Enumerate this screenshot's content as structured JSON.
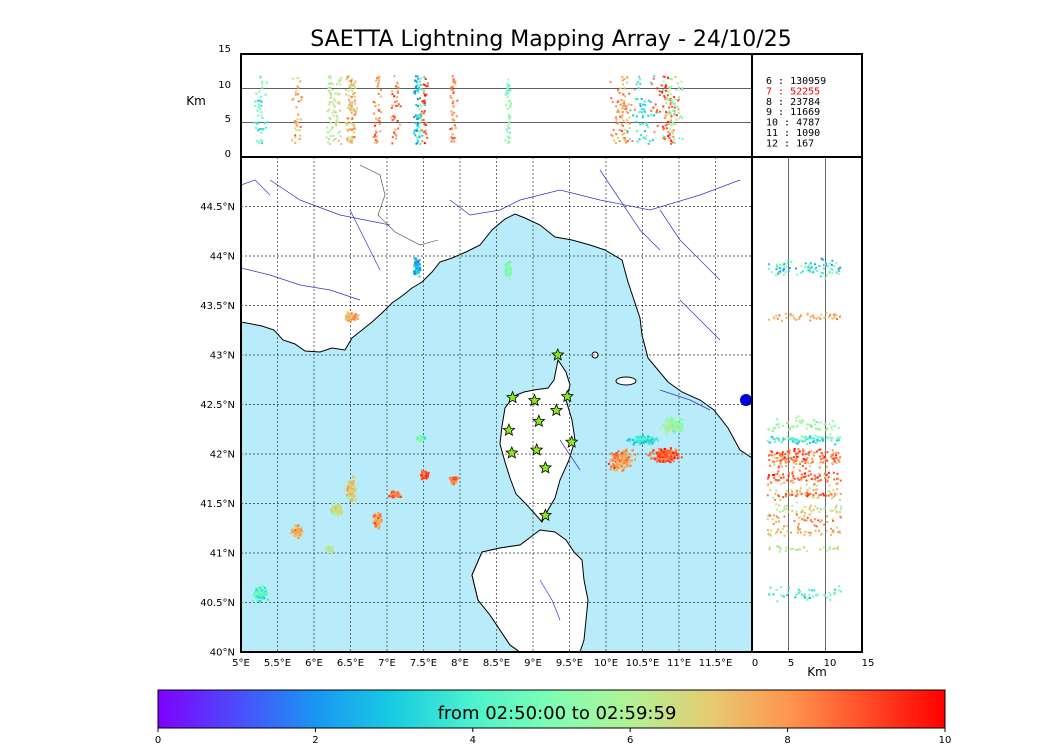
{
  "title": "SAETTA Lightning Mapping Array - 24/10/25",
  "altitude_panel": {
    "ylabel": "Km",
    "ticks": [
      "0",
      "5",
      "10",
      "15"
    ]
  },
  "side_panel": {
    "xlabel": "Km",
    "ticks": [
      "0",
      "5",
      "10",
      "15"
    ]
  },
  "map": {
    "lon_ticks": [
      "5°E",
      "5.5°E",
      "6°E",
      "6.5°E",
      "7°E",
      "7.5°E",
      "8°E",
      "8.5°E",
      "9°E",
      "9.5°E",
      "10°E",
      "10.5°E",
      "11°E",
      "11.5°E"
    ],
    "lat_ticks": [
      "40°N",
      "40.5°N",
      "41°N",
      "41.5°N",
      "42°N",
      "42.5°N",
      "43°N",
      "43.5°N",
      "44°N",
      "44.5°N"
    ],
    "lon_range": [
      5,
      12
    ],
    "lat_range": [
      40,
      45
    ],
    "sea_color": "#b8ecfb",
    "land_color": "#ffffff",
    "river_color": "#3333cc",
    "station_color": "#8bea1a"
  },
  "stations": [
    {
      "lon": 9.34,
      "lat": 43.0
    },
    {
      "lon": 8.72,
      "lat": 42.57
    },
    {
      "lon": 9.02,
      "lat": 42.54
    },
    {
      "lon": 9.47,
      "lat": 42.58
    },
    {
      "lon": 9.32,
      "lat": 42.44
    },
    {
      "lon": 9.08,
      "lat": 42.33
    },
    {
      "lon": 8.67,
      "lat": 42.24
    },
    {
      "lon": 9.53,
      "lat": 42.12
    },
    {
      "lon": 9.05,
      "lat": 42.04
    },
    {
      "lon": 8.71,
      "lat": 42.01
    },
    {
      "lon": 9.17,
      "lat": 41.86
    },
    {
      "lon": 9.17,
      "lat": 41.38
    }
  ],
  "legend": [
    {
      "label": " 6 :  130959",
      "color": "#000000"
    },
    {
      "label": " 7 :   52255",
      "color": "#ff0000"
    },
    {
      "label": " 8 :   23784",
      "color": "#000000"
    },
    {
      "label": " 9 :   11669",
      "color": "#000000"
    },
    {
      "label": "10 :    4787",
      "color": "#000000"
    },
    {
      "label": "11 :    1090",
      "color": "#000000"
    },
    {
      "label": "12 :     167",
      "color": "#000000"
    }
  ],
  "colorbar": {
    "label": "from 02:50:00 to 02:59:59",
    "ticks": [
      "0",
      "2",
      "4",
      "6",
      "8",
      "10"
    ],
    "range": [
      0,
      10
    ],
    "stops": [
      "#7f00ff",
      "#4c4cfc",
      "#1996f3",
      "#19cce2",
      "#4cf2ce",
      "#7ffeb3",
      "#b2f295",
      "#e5cc73",
      "#ff964f",
      "#ff4c27",
      "#ff0000"
    ]
  },
  "clusters": [
    {
      "lon": 5.25,
      "lat": 40.6,
      "rl": 0.12,
      "rt": 0.09,
      "c": 0.4
    },
    {
      "lon": 5.75,
      "lat": 41.22,
      "rl": 0.1,
      "rt": 0.08,
      "c": 0.75
    },
    {
      "lon": 6.2,
      "lat": 41.05,
      "rl": 0.06,
      "rt": 0.04,
      "c": 0.6
    },
    {
      "lon": 6.5,
      "lat": 41.65,
      "rl": 0.1,
      "rt": 0.15,
      "c": 0.7
    },
    {
      "lon": 6.3,
      "lat": 41.45,
      "rl": 0.1,
      "rt": 0.08,
      "c": 0.65
    },
    {
      "lon": 6.85,
      "lat": 41.35,
      "rl": 0.08,
      "rt": 0.1,
      "c": 0.8
    },
    {
      "lon": 7.1,
      "lat": 41.6,
      "rl": 0.1,
      "rt": 0.04,
      "c": 0.85
    },
    {
      "lon": 7.5,
      "lat": 41.8,
      "rl": 0.08,
      "rt": 0.05,
      "c": 0.9
    },
    {
      "lon": 7.9,
      "lat": 41.75,
      "rl": 0.08,
      "rt": 0.05,
      "c": 0.85
    },
    {
      "lon": 6.5,
      "lat": 43.4,
      "rl": 0.12,
      "rt": 0.06,
      "c": 0.75
    },
    {
      "lon": 7.45,
      "lat": 42.17,
      "rl": 0.08,
      "rt": 0.03,
      "c": 0.45
    },
    {
      "lon": 7.4,
      "lat": 43.9,
      "rl": 0.06,
      "rt": 0.12,
      "c": 0.25
    },
    {
      "lon": 8.65,
      "lat": 43.87,
      "rl": 0.06,
      "rt": 0.12,
      "c": 0.5
    },
    {
      "lon": 10.2,
      "lat": 41.95,
      "rl": 0.22,
      "rt": 0.15,
      "c": 0.8
    },
    {
      "lon": 10.8,
      "lat": 42.0,
      "rl": 0.3,
      "rt": 0.1,
      "c": 0.88
    },
    {
      "lon": 10.5,
      "lat": 42.15,
      "rl": 0.25,
      "rt": 0.06,
      "c": 0.35
    },
    {
      "lon": 10.9,
      "lat": 42.3,
      "rl": 0.18,
      "rt": 0.1,
      "c": 0.55
    }
  ]
}
